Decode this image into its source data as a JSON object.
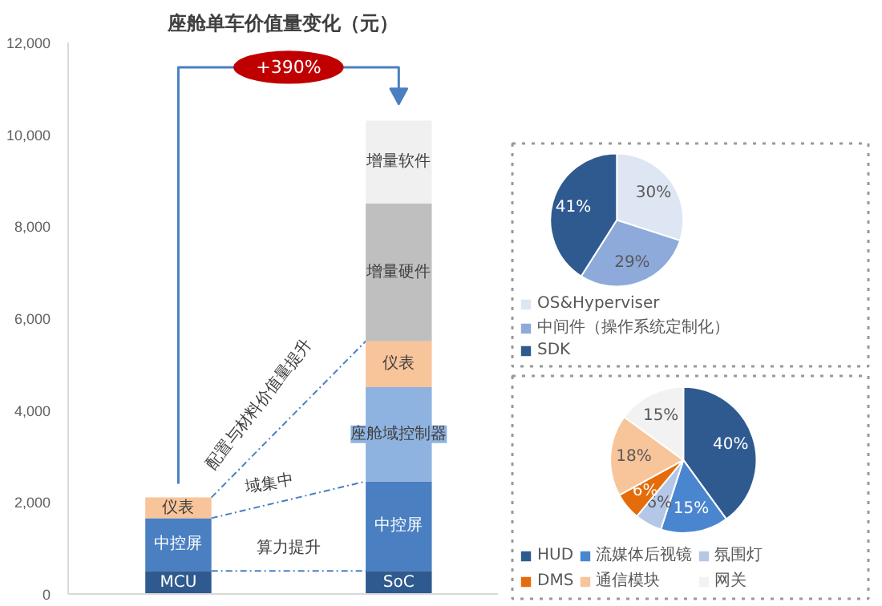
{
  "chart_data": [
    {
      "type": "bar",
      "title": "座舱单车价值量变化（元）",
      "stacked": true,
      "categories": [
        null,
        null
      ],
      "series": [
        {
          "name": "MCU",
          "color": "#2f5a8f",
          "values": [
            500,
            null
          ]
        },
        {
          "name": "SoC",
          "color": "#2f5a8f",
          "values": [
            null,
            500
          ]
        },
        {
          "name": "中控屏",
          "color": "#4a7fc1",
          "values": [
            1150,
            1950
          ]
        },
        {
          "name": "座舱域控制器",
          "color": "#8fb3e0",
          "values": [
            null,
            2050
          ]
        },
        {
          "name": "仪表",
          "color": "#f8c49a",
          "values": [
            450,
            1000
          ]
        },
        {
          "name": "增量硬件",
          "color": "#bfbfbf",
          "values": [
            null,
            3000
          ]
        },
        {
          "name": "增量软件",
          "color": "#f0f0f0",
          "values": [
            null,
            1800
          ]
        }
      ],
      "ylim": [
        0,
        12000
      ],
      "yticks": [
        0,
        {
          "value": 2000,
          "label": "2,000"
        },
        {
          "value": 4000,
          "label": "4,000"
        },
        {
          "value": 6000,
          "label": "6,000"
        },
        {
          "value": 8000,
          "label": "8,000"
        },
        {
          "value": 10000,
          "label": "10,000"
        },
        {
          "value": 12000,
          "label": "12,000"
        }
      ],
      "tick_labels": "y",
      "grid": false,
      "legend": false,
      "annotations": [
        "+390%",
        "配置与材料价值量提升",
        "域集中",
        "算力提升"
      ]
    },
    {
      "type": "pie",
      "categories": [
        "OS&Hyperviser",
        "中间件（操作系统定制化）",
        "SDK"
      ],
      "values": [
        30,
        29,
        41
      ],
      "colors": [
        "#dde6f2",
        "#8eaadb",
        "#2f5a8f"
      ],
      "value_labels": [
        "30%",
        "29%",
        "41%"
      ],
      "legend": "bottom"
    },
    {
      "type": "pie",
      "categories": [
        "HUD",
        "流媒体后视镜",
        "氛围灯",
        "DMS",
        "通信模块",
        "网关"
      ],
      "values": [
        40,
        15,
        6,
        6,
        18,
        15
      ],
      "colors": [
        "#2f5a8f",
        "#4a86d0",
        "#b4c7e7",
        "#e46c0a",
        "#f8c49a",
        "#f2f2f2"
      ],
      "value_labels": [
        "40%",
        "15%",
        "6%",
        "6%",
        "18%",
        "15%"
      ],
      "legend": "bottom"
    }
  ]
}
